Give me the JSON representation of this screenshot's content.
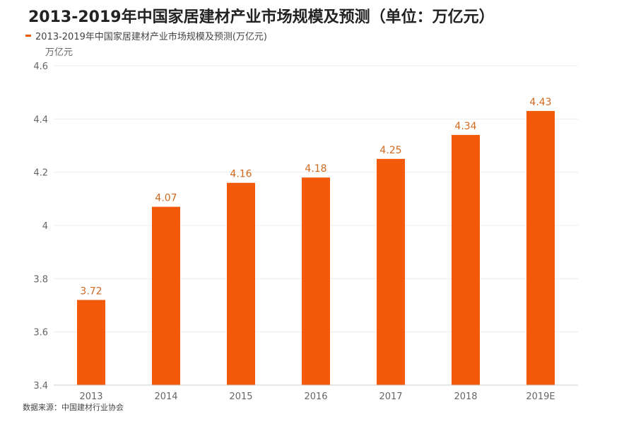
{
  "title": "2013-2019年中国家居建材产业市场规模及预测（单位：万亿元）",
  "legend_label": "2013-2019年中国家居建材产业市场规模及预测(万亿元)",
  "source": "数据来源：中国建材行业协会",
  "chart_data": {
    "type": "bar",
    "title": "2013-2019年中国家居建材产业市场规模及预测（单位：万亿元）",
    "ylabel": "万亿元",
    "xlabel": "",
    "categories": [
      "2013",
      "2014",
      "2015",
      "2016",
      "2017",
      "2018",
      "2019E"
    ],
    "series": [
      {
        "name": "2013-2019年中国家居建材产业市场规模及预测(万亿元)",
        "values": [
          3.72,
          4.07,
          4.16,
          4.18,
          4.25,
          4.34,
          4.43
        ]
      }
    ],
    "value_labels": [
      "3.72",
      "4.07",
      "4.16",
      "4.18",
      "4.25",
      "4.34",
      "4.43"
    ],
    "ylim": [
      3.4,
      4.6
    ],
    "yticks": [
      "3.4",
      "3.6",
      "3.8",
      "4",
      "4.2",
      "4.4",
      "4.6"
    ],
    "grid": true,
    "legend_position": "top-left",
    "bar_color": "#f25a0a",
    "label_color": "#d2691e"
  }
}
